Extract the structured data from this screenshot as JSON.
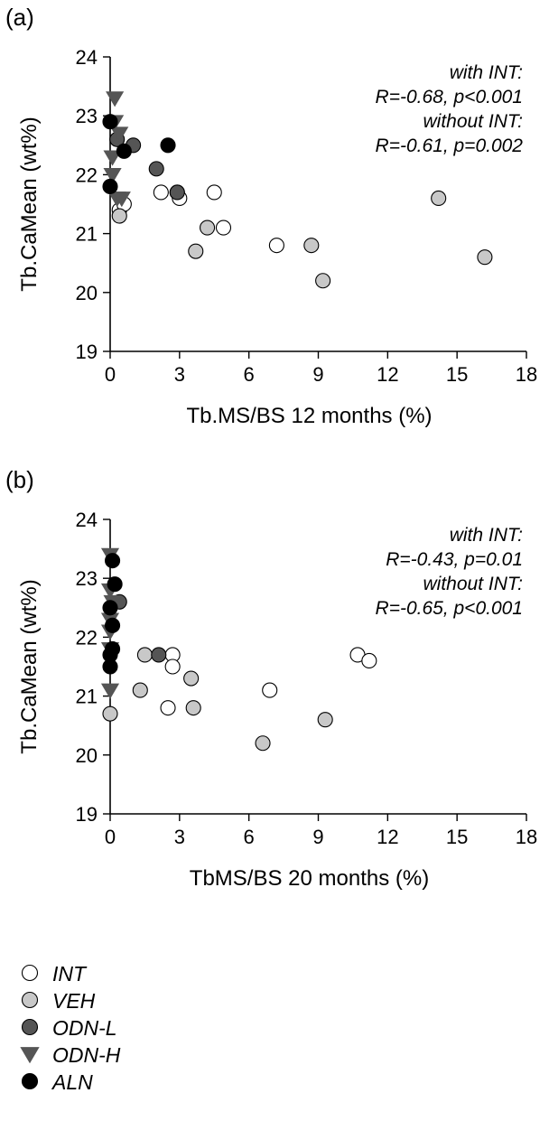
{
  "chart_data": [
    {
      "panel_label": "(a)",
      "type": "scatter",
      "xlabel": "Tb.MS/BS 12 months (%)",
      "ylabel": "Tb.CaMean (wt%)",
      "xlim": [
        0,
        18
      ],
      "ylim": [
        19,
        24
      ],
      "xticks": [
        0,
        3,
        6,
        9,
        12,
        15,
        18
      ],
      "yticks": [
        19,
        20,
        21,
        22,
        23,
        24
      ],
      "grid": false,
      "annotations": [
        "with INT:",
        "R=-0.68, p<0.001",
        "without INT:",
        "R=-0.61, p=0.002"
      ],
      "series": [
        {
          "name": "INT",
          "points": [
            [
              0.4,
              21.4
            ],
            [
              2.2,
              21.7
            ],
            [
              2.9,
              21.7
            ],
            [
              3.0,
              21.6
            ],
            [
              4.5,
              21.7
            ],
            [
              4.9,
              21.1
            ],
            [
              7.2,
              20.8
            ],
            [
              0.6,
              21.5
            ]
          ]
        },
        {
          "name": "VEH",
          "points": [
            [
              0.4,
              21.3
            ],
            [
              3.7,
              20.7
            ],
            [
              4.2,
              21.1
            ],
            [
              8.7,
              20.8
            ],
            [
              9.2,
              20.2
            ],
            [
              14.2,
              21.6
            ],
            [
              16.2,
              20.6
            ]
          ]
        },
        {
          "name": "ODN-L",
          "points": [
            [
              1.0,
              22.5
            ],
            [
              2.0,
              22.1
            ],
            [
              2.9,
              21.7
            ],
            [
              0.3,
              22.6
            ]
          ]
        },
        {
          "name": "ODN-H",
          "points": [
            [
              0.2,
              23.3
            ],
            [
              0.2,
              22.9
            ],
            [
              0.4,
              22.7
            ],
            [
              0.1,
              22.3
            ],
            [
              0.1,
              22.0
            ],
            [
              0.3,
              21.6
            ],
            [
              0.5,
              21.6
            ]
          ]
        },
        {
          "name": "ALN",
          "points": [
            [
              0.0,
              22.9
            ],
            [
              0.0,
              21.8
            ],
            [
              0.6,
              22.4
            ],
            [
              2.5,
              22.5
            ]
          ]
        }
      ]
    },
    {
      "panel_label": "(b)",
      "type": "scatter",
      "xlabel": "TbMS/BS 20 months (%)",
      "ylabel": "Tb.CaMean (wt%)",
      "xlim": [
        0,
        18
      ],
      "ylim": [
        19,
        24
      ],
      "xticks": [
        0,
        3,
        6,
        9,
        12,
        15,
        18
      ],
      "yticks": [
        19,
        20,
        21,
        22,
        23,
        24
      ],
      "grid": false,
      "annotations": [
        "with INT:",
        "R=-0.43, p=0.01",
        "without INT:",
        "R=-0.65, p<0.001"
      ],
      "series": [
        {
          "name": "INT",
          "points": [
            [
              2.7,
              21.7
            ],
            [
              2.7,
              21.5
            ],
            [
              2.5,
              20.8
            ],
            [
              6.9,
              21.1
            ],
            [
              10.7,
              21.7
            ],
            [
              11.2,
              21.6
            ]
          ]
        },
        {
          "name": "VEH",
          "points": [
            [
              0.0,
              20.7
            ],
            [
              1.3,
              21.1
            ],
            [
              1.5,
              21.7
            ],
            [
              3.5,
              21.3
            ],
            [
              3.6,
              20.8
            ],
            [
              6.6,
              20.2
            ],
            [
              9.3,
              20.6
            ]
          ]
        },
        {
          "name": "ODN-L",
          "points": [
            [
              2.1,
              21.7
            ],
            [
              0.4,
              22.6
            ]
          ]
        },
        {
          "name": "ODN-H",
          "points": [
            [
              0.0,
              23.4
            ],
            [
              0.0,
              22.8
            ],
            [
              0.1,
              22.6
            ],
            [
              0.0,
              22.3
            ],
            [
              0.0,
              22.1
            ],
            [
              0.0,
              21.8
            ],
            [
              0.0,
              21.1
            ]
          ]
        },
        {
          "name": "ALN",
          "points": [
            [
              0.1,
              23.3
            ],
            [
              0.2,
              22.9
            ],
            [
              0.0,
              22.5
            ],
            [
              0.1,
              22.2
            ],
            [
              0.1,
              21.8
            ],
            [
              0.0,
              21.7
            ],
            [
              0.0,
              21.5
            ]
          ]
        }
      ]
    }
  ],
  "legend": [
    {
      "label": "INT",
      "marker": "circle",
      "fill": "#ffffff"
    },
    {
      "label": "VEH",
      "marker": "circle",
      "fill": "#c8c8c8"
    },
    {
      "label": "ODN-L",
      "marker": "circle",
      "fill": "#555555"
    },
    {
      "label": "ODN-H",
      "marker": "triangle-down",
      "fill": "#555555"
    },
    {
      "label": "ALN",
      "marker": "circle",
      "fill": "#000000"
    }
  ]
}
